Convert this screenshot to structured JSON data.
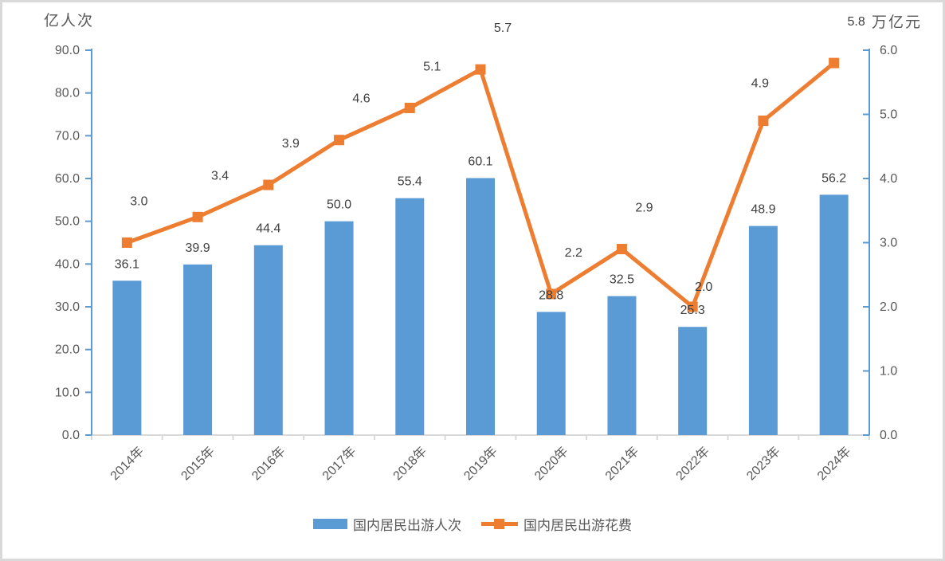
{
  "chart_data": {
    "type": "combo-bar-line",
    "categories": [
      "2014年",
      "2015年",
      "2016年",
      "2017年",
      "2018年",
      "2019年",
      "2020年",
      "2021年",
      "2022年",
      "2023年",
      "2024年"
    ],
    "series": [
      {
        "name": "国内居民出游人次",
        "type": "bar",
        "axis": "left",
        "values": [
          36.1,
          39.9,
          44.4,
          50.0,
          55.4,
          60.1,
          28.8,
          32.5,
          25.3,
          48.9,
          56.2
        ]
      },
      {
        "name": "国内居民出游花费",
        "type": "line",
        "axis": "right",
        "values": [
          3.0,
          3.4,
          3.9,
          4.6,
          5.1,
          5.7,
          2.2,
          2.9,
          2.0,
          4.9,
          5.8
        ]
      }
    ],
    "left_axis": {
      "title": "亿人次",
      "min": 0,
      "max": 90,
      "step": 10,
      "tick_labels": [
        "0.0",
        "10.0",
        "20.0",
        "30.0",
        "40.0",
        "50.0",
        "60.0",
        "70.0",
        "80.0",
        "90.0"
      ]
    },
    "right_axis": {
      "title": "万亿元",
      "min": 0,
      "max": 6,
      "step": 1,
      "tick_labels": [
        "0.0",
        "1.0",
        "2.0",
        "3.0",
        "4.0",
        "5.0",
        "6.0"
      ]
    },
    "legend_position": "bottom",
    "grid": false
  },
  "colors": {
    "bar": "#5B9BD5",
    "line": "#ED7D31",
    "axis_line": "#5B9BD5",
    "baseline": "#D9D9D9",
    "tick_text": "#595959",
    "data_label": "#3f3f3f"
  }
}
